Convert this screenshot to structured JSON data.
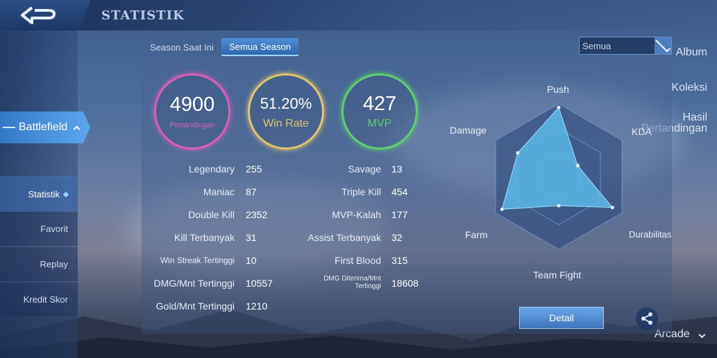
{
  "header": {
    "title": "STATISTIK"
  },
  "sidebar": {
    "album": "Album",
    "koleksi": "Koleksi",
    "hasil_line1": "Hasil",
    "hasil_line2": "Pertandingan",
    "battlefield": "Battlefield",
    "sub_items": [
      "Statistik",
      "Favorit",
      "Replay",
      "Kredit Skor"
    ],
    "arcade": "Arcade"
  },
  "tabs": {
    "current": "Season Saat Ini",
    "all": "Semua Season"
  },
  "dropdown": {
    "selected": "Semua"
  },
  "summary": {
    "matches": {
      "value": "4900",
      "label": "Pertandingan",
      "color": "#d860b8"
    },
    "winrate": {
      "value": "51.20%",
      "label": "Win Rate",
      "color": "#e2c46a"
    },
    "mvp": {
      "value": "427",
      "label": "MVP",
      "color": "#5fd070"
    }
  },
  "stats_left": [
    {
      "label": "Legendary",
      "value": "255"
    },
    {
      "label": "Maniac",
      "value": "87"
    },
    {
      "label": "Double Kill",
      "value": "2352"
    },
    {
      "label": "Kill Terbanyak",
      "value": "31"
    },
    {
      "label": "Win Streak Tertinggi",
      "value": "10"
    },
    {
      "label": "DMG/Mnt Tertinggi",
      "value": "10557"
    },
    {
      "label": "Gold/Mnt Tertinggi",
      "value": "1210"
    }
  ],
  "stats_right": [
    {
      "label": "Savage",
      "value": "13"
    },
    {
      "label": "Triple Kill",
      "value": "454"
    },
    {
      "label": "MVP-Kalah",
      "value": "177"
    },
    {
      "label": "Assist Terbanyak",
      "value": "32"
    },
    {
      "label": "First Blood",
      "value": "315"
    },
    {
      "label": "DMG Diterima/Mnt Tertinggi",
      "value": "18608"
    }
  ],
  "radar": {
    "axes": [
      "Push",
      "KDA",
      "Durabilitas",
      "Team Fight",
      "Farm",
      "Damage"
    ],
    "values": [
      0.95,
      0.3,
      0.85,
      0.4,
      0.9,
      0.65
    ],
    "fill_color": "#5bb8e8"
  },
  "buttons": {
    "detail": "Detail"
  },
  "icons": {
    "back": "back-arrow-icon",
    "share": "share-icon"
  }
}
